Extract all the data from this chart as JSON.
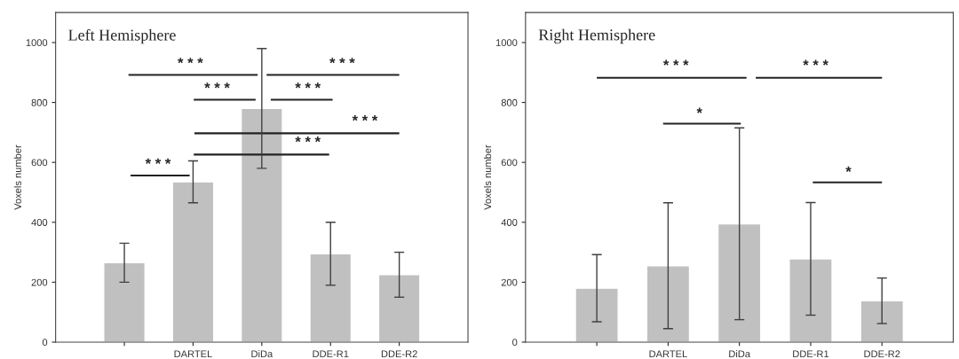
{
  "chart_data": [
    {
      "type": "bar",
      "title": "Left Hemisphere",
      "ylabel": "Voxels number",
      "categories": [
        null,
        "DARTEL",
        "DiDa",
        "DDE-R1",
        "DDE-R2"
      ],
      "series": [
        {
          "color": "#c0c0c0",
          "values": [
            265,
            535,
            780,
            295,
            225
          ],
          "errors": [
            65,
            70,
            200,
            105,
            75
          ]
        }
      ],
      "ylim": [
        0,
        1100
      ],
      "yticks": [
        0,
        200,
        400,
        600,
        800,
        1000
      ],
      "annotations": [
        "* * *",
        "* * *",
        "* * *",
        "* * *",
        "* * *",
        "* * *",
        "* * *"
      ]
    },
    {
      "type": "bar",
      "title": "Right Hemisphere",
      "ylabel": "Voxels number",
      "categories": [
        null,
        "DARTEL",
        "DiDa",
        "DDE-R1",
        "DDE-R2"
      ],
      "series": [
        {
          "color": "#c0c0c0",
          "values": [
            180,
            255,
            395,
            278,
            138
          ],
          "errors": [
            112,
            210,
            320,
            188,
            76
          ]
        }
      ],
      "ylim": [
        0,
        1100
      ],
      "yticks": [
        0,
        200,
        400,
        600,
        800,
        1000
      ],
      "annotations": [
        "* * *",
        "* * *",
        "*",
        "*"
      ]
    }
  ]
}
